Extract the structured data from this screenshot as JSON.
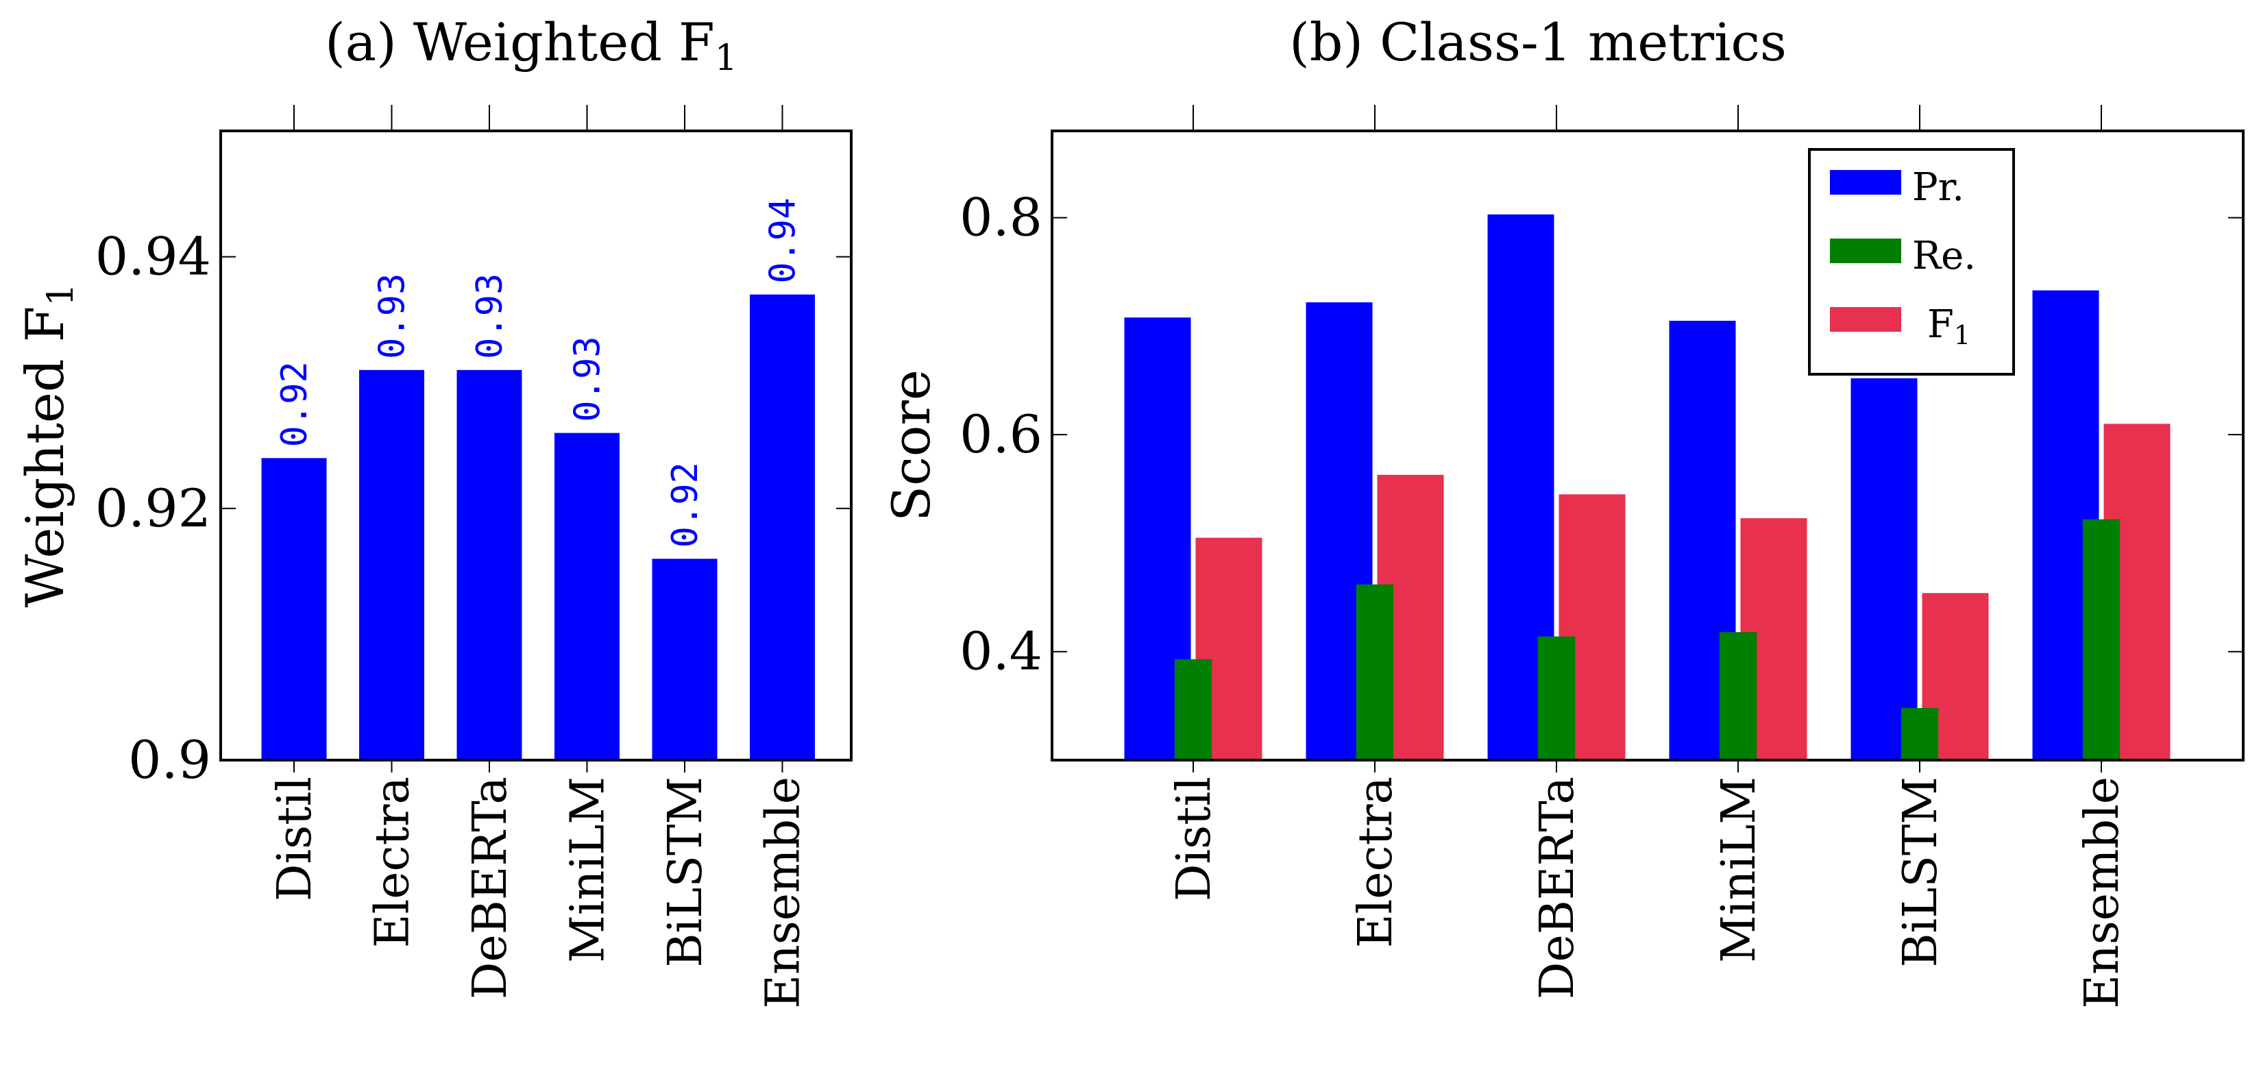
{
  "colors": {
    "pr": "#0000ff",
    "re": "#007f00",
    "f1": "#e8304f",
    "label": "#0000ff",
    "axis": "#000000"
  },
  "chart_data": [
    {
      "type": "bar",
      "title": "(a) Weighted F",
      "title_sub": "1",
      "ylabel": "Weighted F",
      "ylabel_sub": "1",
      "ylim": [
        0.9,
        0.95
      ],
      "yticks": [
        0.9,
        0.92,
        0.94
      ],
      "ytick_labels": [
        "0.9",
        "0.92",
        "0.94"
      ],
      "categories": [
        "Distil",
        "Electra",
        "DeBERTa",
        "MiniLM",
        "BiLSTM",
        "Ensemble"
      ],
      "values": [
        0.924,
        0.931,
        0.931,
        0.926,
        0.916,
        0.937
      ],
      "data_labels": [
        "0.92",
        "0.93",
        "0.93",
        "0.93",
        "0.92",
        "0.94"
      ]
    },
    {
      "type": "bar",
      "title": "(b) Class-1 metrics",
      "ylabel": "Score",
      "ylim": [
        0.3,
        0.88
      ],
      "yticks": [
        0.4,
        0.6,
        0.8
      ],
      "ytick_labels": [
        "0.4",
        "0.6",
        "0.8"
      ],
      "categories": [
        "Distil",
        "Electra",
        "DeBERTa",
        "MiniLM",
        "BiLSTM",
        "Ensemble"
      ],
      "legend_position": "top-right",
      "series": [
        {
          "name": "Pr.",
          "values": [
            0.708,
            0.722,
            0.803,
            0.705,
            0.652,
            0.733
          ]
        },
        {
          "name": "Re.",
          "values": [
            0.393,
            0.462,
            0.414,
            0.418,
            0.348,
            0.522
          ]
        },
        {
          "name": "F",
          "name_sub": "1",
          "values": [
            0.505,
            0.563,
            0.545,
            0.523,
            0.454,
            0.61
          ]
        }
      ]
    }
  ]
}
